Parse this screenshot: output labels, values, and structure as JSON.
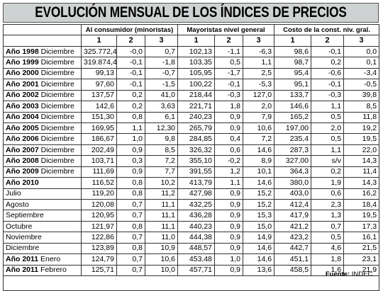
{
  "title": "EVOLUCIÓN MENSUAL DE LOS ÍNDICES DE PRECIOS",
  "groups": [
    "Al consumidor (minoristas)",
    "Mayoristas nivel general",
    "Costo de la const. niv. gral."
  ],
  "subheaders": [
    "1",
    "2",
    "3",
    "1",
    "2",
    "3",
    "1",
    "2",
    "3"
  ],
  "rows": [
    {
      "year": "Año 1998",
      "month": "Diciembre",
      "cells": [
        "325.772,4",
        "-0,0",
        "0,7",
        "102,13",
        "-1,1",
        "-6,3",
        "98,6",
        "-0,1",
        "0,0"
      ]
    },
    {
      "year": "Año 1999",
      "month": "Diciembre",
      "cells": [
        "319.874,4",
        "-0,1",
        "-1,8",
        "103,35",
        "0,5",
        "1,1",
        "98,7",
        "0,2",
        "0,1"
      ]
    },
    {
      "year": "Año 2000",
      "month": "Diciembre",
      "cells": [
        "99,13",
        "-0,1",
        "-0,7",
        "105,95",
        "-1,7",
        "2,5",
        "95,4",
        "-0,6",
        "-3,4"
      ]
    },
    {
      "year": "Año 2001",
      "month": "Diciembre",
      "cells": [
        "97,60",
        "-0,1",
        "-1,5",
        "100,22",
        "-0,1",
        "-5,3",
        "95,1",
        "-0,1",
        "-0,5"
      ]
    },
    {
      "year": "Año 2002",
      "month": "Diciembre",
      "cells": [
        "137,57",
        "0,2",
        "41,0",
        "218,44",
        "-0,3",
        "127,0",
        "133,7",
        "-0,3",
        "39,8"
      ]
    },
    {
      "year": "Año 2003",
      "month": "Diciembre",
      "cells": [
        "142,6",
        "0,2",
        "3,63",
        "221,71",
        "1,8",
        "2,0",
        "146,6",
        "1,1",
        "8,5"
      ]
    },
    {
      "year": "Año 2004",
      "month": "Diciembre",
      "cells": [
        "151,30",
        "0,8",
        "6,1",
        "240,23",
        "0,9",
        "7,9",
        "165,2",
        "0,5",
        "11,8"
      ]
    },
    {
      "year": "Año 2005",
      "month": "Diciembre",
      "cells": [
        "169,95",
        "1,1",
        "12,30",
        "265,79",
        "0,9",
        "10,6",
        "197,00",
        "2,0",
        "19,2"
      ]
    },
    {
      "year": "Año 2006",
      "month": "Diciembre",
      "cells": [
        "186,67",
        "1,0",
        "9,8",
        "284,85",
        "0,4",
        "7,2",
        "235,4",
        "0,5",
        "19,5"
      ]
    },
    {
      "year": "Año 2007",
      "month": "Diciembre",
      "cells": [
        "202,49",
        "0,9",
        "8,5",
        "326,32",
        "0,6",
        "14,6",
        "287,3",
        "1,1",
        "22,0"
      ]
    },
    {
      "year": "Año 2008",
      "month": "Diciembre",
      "cells": [
        "103,71",
        "0,3",
        "7,2",
        "355,10",
        "-0,2",
        "8,9",
        "327,00",
        "s/v",
        "14,3"
      ]
    },
    {
      "year": "Año 2009",
      "month": "Diciembre",
      "cells": [
        "111,69",
        "0,9",
        "7,7",
        "391,55",
        "1,2",
        "10,1",
        "364,3",
        "0,2",
        "11,4"
      ]
    },
    {
      "year": "Año 2010",
      "month": "",
      "cells": [
        "116,52",
        "0,8",
        "10,2",
        "413,79",
        "1,1",
        "14,6",
        "380,0",
        "1,9",
        "14,3"
      ]
    },
    {
      "year": "",
      "month": "Julio",
      "cells": [
        "119,20",
        "0,8",
        "11,2",
        "427,98",
        "0,9",
        "15,2",
        "403,0",
        "0,6",
        "16,2"
      ]
    },
    {
      "year": "",
      "month": "Agosto",
      "cells": [
        "120,08",
        "0,7",
        "11,1",
        "432,25",
        "0,9",
        "15,2",
        "412,4",
        "2,3",
        "18,4"
      ]
    },
    {
      "year": "",
      "month": "Septiembre",
      "cells": [
        "120,95",
        "0,7",
        "11,1",
        "436,28",
        "0,9",
        "15,3",
        "417,9",
        "1,3",
        "19,5"
      ]
    },
    {
      "year": "",
      "month": "Octubre",
      "cells": [
        "121,97",
        "0,8",
        "11,1",
        "440,23",
        "0,9",
        "15,0",
        "421,2",
        "0,7",
        "17,3"
      ]
    },
    {
      "year": "",
      "month": "Noviembre",
      "cells": [
        "122,86",
        "0,7",
        "11,0",
        "444,38",
        "0,9",
        "14,9",
        "423,2",
        "0,5",
        "16,1"
      ]
    },
    {
      "year": "",
      "month": "Diciembre",
      "cells": [
        "123,89",
        "0,8",
        "10,9",
        "448,57",
        "0,9",
        "14,6",
        "442,7",
        "4,6",
        "21,5"
      ]
    },
    {
      "year": "Año 2011",
      "month": "Enero",
      "cells": [
        "124,79",
        "0,7",
        "10,6",
        "453,48",
        "1,0",
        "14,6",
        "451,1",
        "1,8",
        "23,1"
      ]
    },
    {
      "year": "Año 2011",
      "month": "Febrero",
      "cells": [
        "125,71",
        "0,7",
        "10,0",
        "457,71",
        "0,9",
        "13,6",
        "458,5",
        "1,6",
        "21,9"
      ]
    }
  ],
  "source": {
    "label": "Fuente:",
    "value": "INDEC."
  }
}
